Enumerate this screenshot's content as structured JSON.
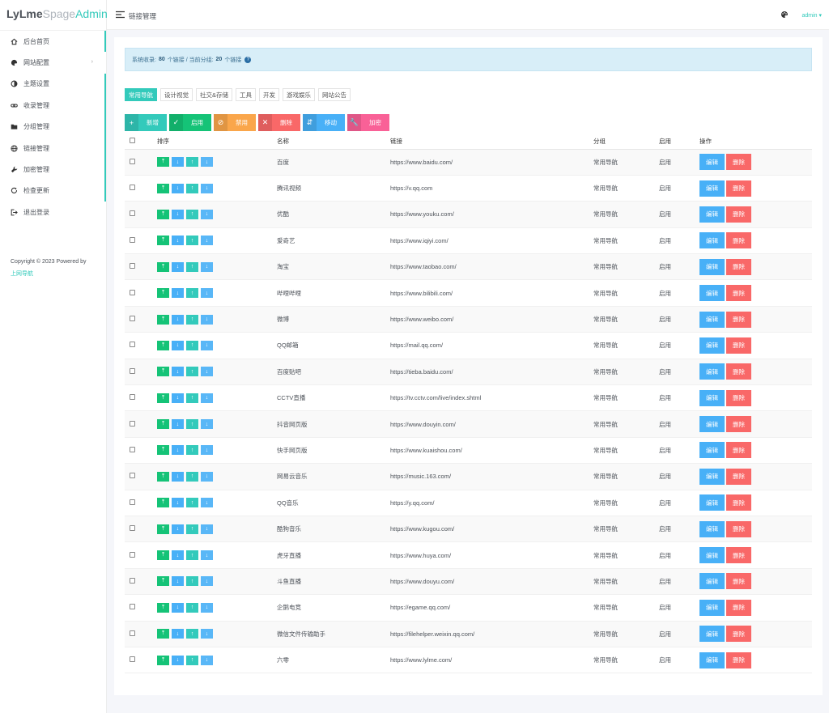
{
  "brand": {
    "part1": "LyLme",
    "part2": "Spage",
    "part3": "Admin"
  },
  "sidebar": {
    "items": [
      {
        "label": "后台首页",
        "icon": "home-icon"
      },
      {
        "label": "网站配置",
        "icon": "palette-icon"
      },
      {
        "label": "主题设置",
        "icon": "contrast-icon"
      },
      {
        "label": "收录管理",
        "icon": "link-icon"
      },
      {
        "label": "分组管理",
        "icon": "folder-icon"
      },
      {
        "label": "链接管理",
        "icon": "globe-icon"
      },
      {
        "label": "加密管理",
        "icon": "wrench-icon"
      },
      {
        "label": "检查更新",
        "icon": "refresh-icon"
      },
      {
        "label": "退出登录",
        "icon": "logout-icon"
      }
    ],
    "copyright": "Copyright © 2023 Powered by",
    "copyright_link": "上网导航"
  },
  "header": {
    "title": "链接管理",
    "user": "admin ▾"
  },
  "alert": {
    "prefix": "系统收录:",
    "total": "80",
    "mid": "个链接 / 当前分组:",
    "current": "20",
    "suffix": "个链接"
  },
  "tabs": [
    "常用导航",
    "设计视觉",
    "社交&存储",
    "工具",
    "开发",
    "游戏娱乐",
    "网站公告"
  ],
  "actions": [
    {
      "label": "新增",
      "icon": "+",
      "color": "#33cabb"
    },
    {
      "label": "启用",
      "icon": "✓",
      "color": "#15c377"
    },
    {
      "label": "禁用",
      "icon": "⊘",
      "color": "#faa64b"
    },
    {
      "label": "删除",
      "icon": "✕",
      "color": "#f96868"
    },
    {
      "label": "移动",
      "icon": "⇵",
      "color": "#48b0f7"
    },
    {
      "label": "加密",
      "icon": "🔧",
      "color": "#f96197"
    }
  ],
  "table": {
    "headers": [
      "排序",
      "名称",
      "链接",
      "分组",
      "启用",
      "操作"
    ],
    "sort_icons": [
      "⤒",
      "↓",
      "↑",
      "↓"
    ],
    "edit_label": "编辑",
    "delete_label": "删除",
    "rows": [
      {
        "name": "百度",
        "url": "https://www.baidu.com/",
        "group": "常用导航",
        "status": "启用"
      },
      {
        "name": "腾讯视频",
        "url": "https://v.qq.com",
        "group": "常用导航",
        "status": "启用"
      },
      {
        "name": "优酷",
        "url": "https://www.youku.com/",
        "group": "常用导航",
        "status": "启用"
      },
      {
        "name": "爱奇艺",
        "url": "https://www.iqiyi.com/",
        "group": "常用导航",
        "status": "启用"
      },
      {
        "name": "淘宝",
        "url": "https://www.taobao.com/",
        "group": "常用导航",
        "status": "启用"
      },
      {
        "name": "哔哩哔哩",
        "url": "https://www.bilibili.com/",
        "group": "常用导航",
        "status": "启用"
      },
      {
        "name": "微博",
        "url": "https://www.weibo.com/",
        "group": "常用导航",
        "status": "启用"
      },
      {
        "name": "QQ邮箱",
        "url": "https://mail.qq.com/",
        "group": "常用导航",
        "status": "启用"
      },
      {
        "name": "百度贴吧",
        "url": "https://tieba.baidu.com/",
        "group": "常用导航",
        "status": "启用"
      },
      {
        "name": "CCTV直播",
        "url": "https://tv.cctv.com/live/index.shtml",
        "group": "常用导航",
        "status": "启用"
      },
      {
        "name": "抖音网页版",
        "url": "https://www.douyin.com/",
        "group": "常用导航",
        "status": "启用"
      },
      {
        "name": "快手网页版",
        "url": "https://www.kuaishou.com/",
        "group": "常用导航",
        "status": "启用"
      },
      {
        "name": "网易云音乐",
        "url": "https://music.163.com/",
        "group": "常用导航",
        "status": "启用"
      },
      {
        "name": "QQ音乐",
        "url": "https://y.qq.com/",
        "group": "常用导航",
        "status": "启用"
      },
      {
        "name": "酷狗音乐",
        "url": "https://www.kugou.com/",
        "group": "常用导航",
        "status": "启用"
      },
      {
        "name": "虎牙直播",
        "url": "https://www.huya.com/",
        "group": "常用导航",
        "status": "启用"
      },
      {
        "name": "斗鱼直播",
        "url": "https://www.douyu.com/",
        "group": "常用导航",
        "status": "启用"
      },
      {
        "name": "企鹅电竞",
        "url": "https://egame.qq.com/",
        "group": "常用导航",
        "status": "启用"
      },
      {
        "name": "微信文件传输助手",
        "url": "https://filehelper.weixin.qq.com/",
        "group": "常用导航",
        "status": "启用"
      },
      {
        "name": "六零",
        "url": "https://www.lylme.com/",
        "group": "常用导航",
        "status": "启用"
      }
    ]
  }
}
